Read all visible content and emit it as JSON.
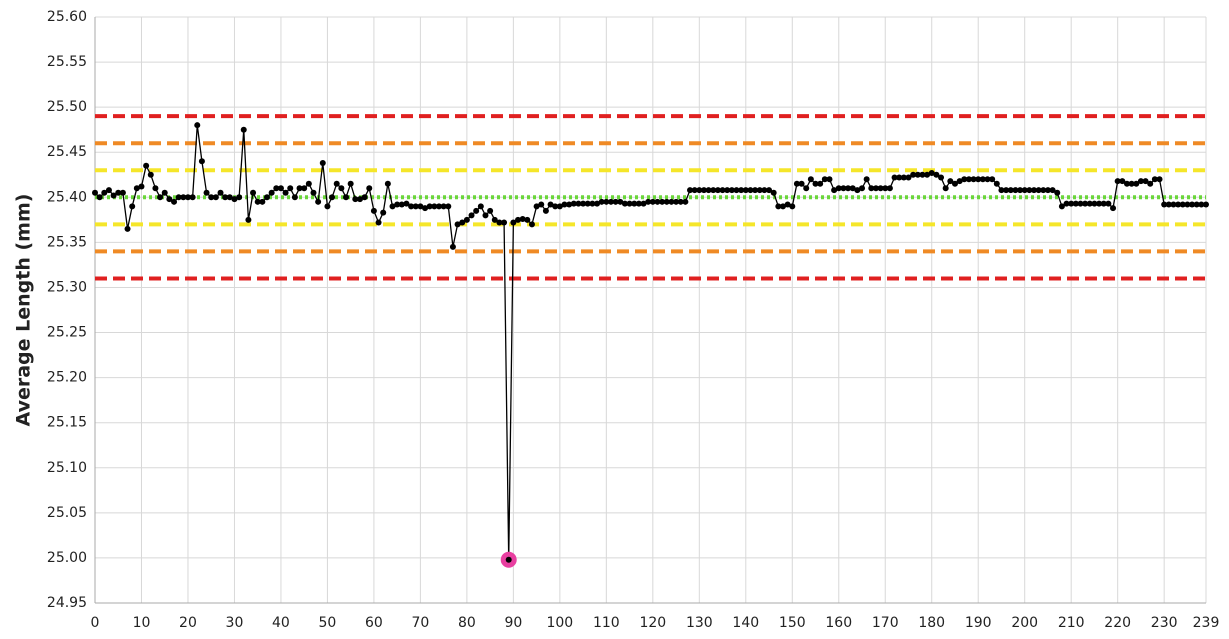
{
  "chart_data": {
    "type": "line",
    "y_label": "Average Length (mm)",
    "x": [
      0,
      1,
      2,
      3,
      4,
      5,
      6,
      7,
      8,
      9,
      10,
      11,
      12,
      13,
      14,
      15,
      16,
      17,
      18,
      19,
      20,
      21,
      22,
      23,
      24,
      25,
      26,
      27,
      28,
      29,
      30,
      31,
      32,
      33,
      34,
      35,
      36,
      37,
      38,
      39,
      40,
      41,
      42,
      43,
      44,
      45,
      46,
      47,
      48,
      49,
      50,
      51,
      52,
      53,
      54,
      55,
      56,
      57,
      58,
      59,
      60,
      61,
      62,
      63,
      64,
      65,
      66,
      67,
      68,
      69,
      70,
      71,
      72,
      73,
      74,
      75,
      76,
      77,
      78,
      79,
      80,
      81,
      82,
      83,
      84,
      85,
      86,
      87,
      88,
      89,
      90,
      91,
      92,
      93,
      94,
      95,
      96,
      97,
      98,
      99,
      100,
      101,
      102,
      103,
      104,
      105,
      106,
      107,
      108,
      109,
      110,
      111,
      112,
      113,
      114,
      115,
      116,
      117,
      118,
      119,
      120,
      121,
      122,
      123,
      124,
      125,
      126,
      127,
      128,
      129,
      130,
      131,
      132,
      133,
      134,
      135,
      136,
      137,
      138,
      139,
      140,
      141,
      142,
      143,
      144,
      145,
      146,
      147,
      148,
      149,
      150,
      151,
      152,
      153,
      154,
      155,
      156,
      157,
      158,
      159,
      160,
      161,
      162,
      163,
      164,
      165,
      166,
      167,
      168,
      169,
      170,
      171,
      172,
      173,
      174,
      175,
      176,
      177,
      178,
      179,
      180,
      181,
      182,
      183,
      184,
      185,
      186,
      187,
      188,
      189,
      190,
      191,
      192,
      193,
      194,
      195,
      196,
      197,
      198,
      199,
      200,
      201,
      202,
      203,
      204,
      205,
      206,
      207,
      208,
      209,
      210,
      211,
      212,
      213,
      214,
      215,
      216,
      217,
      218,
      219,
      220,
      221,
      222,
      223,
      224,
      225,
      226,
      227,
      228,
      229,
      230,
      231,
      232,
      233,
      234,
      235,
      236,
      237,
      238,
      239
    ],
    "values": [
      25.405,
      25.4,
      25.405,
      25.408,
      25.402,
      25.405,
      25.405,
      25.365,
      25.39,
      25.41,
      25.412,
      25.435,
      25.425,
      25.41,
      25.4,
      25.405,
      25.398,
      25.395,
      25.4,
      25.4,
      25.4,
      25.4,
      25.48,
      25.44,
      25.405,
      25.4,
      25.4,
      25.405,
      25.4,
      25.4,
      25.398,
      25.4,
      25.475,
      25.375,
      25.405,
      25.395,
      25.395,
      25.4,
      25.405,
      25.41,
      25.41,
      25.405,
      25.41,
      25.4,
      25.41,
      25.41,
      25.415,
      25.405,
      25.395,
      25.438,
      25.39,
      25.4,
      25.415,
      25.41,
      25.4,
      25.415,
      25.398,
      25.398,
      25.4,
      25.41,
      25.385,
      25.372,
      25.383,
      25.415,
      25.39,
      25.392,
      25.392,
      25.393,
      25.39,
      25.39,
      25.39,
      25.388,
      25.39,
      25.39,
      25.39,
      25.39,
      25.39,
      25.345,
      25.37,
      25.372,
      25.375,
      25.38,
      25.385,
      25.39,
      25.38,
      25.385,
      25.375,
      25.372,
      25.372,
      24.998,
      25.372,
      25.375,
      25.376,
      25.375,
      25.37,
      25.39,
      25.392,
      25.385,
      25.392,
      25.39,
      25.39,
      25.392,
      25.392,
      25.393,
      25.393,
      25.393,
      25.393,
      25.393,
      25.393,
      25.395,
      25.395,
      25.395,
      25.395,
      25.395,
      25.393,
      25.393,
      25.393,
      25.393,
      25.393,
      25.395,
      25.395,
      25.395,
      25.395,
      25.395,
      25.395,
      25.395,
      25.395,
      25.395,
      25.408,
      25.408,
      25.408,
      25.408,
      25.408,
      25.408,
      25.408,
      25.408,
      25.408,
      25.408,
      25.408,
      25.408,
      25.408,
      25.408,
      25.408,
      25.408,
      25.408,
      25.408,
      25.405,
      25.39,
      25.39,
      25.392,
      25.39,
      25.415,
      25.415,
      25.41,
      25.42,
      25.415,
      25.415,
      25.42,
      25.42,
      25.408,
      25.41,
      25.41,
      25.41,
      25.41,
      25.408,
      25.41,
      25.42,
      25.41,
      25.41,
      25.41,
      25.41,
      25.41,
      25.422,
      25.422,
      25.422,
      25.422,
      25.425,
      25.425,
      25.425,
      25.425,
      25.427,
      25.425,
      25.422,
      25.41,
      25.418,
      25.415,
      25.418,
      25.42,
      25.42,
      25.42,
      25.42,
      25.42,
      25.42,
      25.42,
      25.415,
      25.408,
      25.408,
      25.408,
      25.408,
      25.408,
      25.408,
      25.408,
      25.408,
      25.408,
      25.408,
      25.408,
      25.408,
      25.405,
      25.39,
      25.393,
      25.393,
      25.393,
      25.393,
      25.393,
      25.393,
      25.393,
      25.393,
      25.393,
      25.393,
      25.388,
      25.418,
      25.418,
      25.415,
      25.415,
      25.415,
      25.418,
      25.418,
      25.415,
      25.42,
      25.42,
      25.392,
      25.392,
      25.392,
      25.392,
      25.392,
      25.392,
      25.392,
      25.392,
      25.392,
      25.392
    ],
    "color": "#000000",
    "highlight_index": 89,
    "highlight_color": "#e83fa0",
    "reference_lines": [
      {
        "value": 25.49,
        "color": "#e02020",
        "style": "dashed"
      },
      {
        "value": 25.46,
        "color": "#ef8a25",
        "style": "dashed"
      },
      {
        "value": 25.43,
        "color": "#f5e62a",
        "style": "dashed"
      },
      {
        "value": 25.4,
        "color": "#6ad63a",
        "style": "dotted"
      },
      {
        "value": 25.37,
        "color": "#f5e62a",
        "style": "dashed"
      },
      {
        "value": 25.34,
        "color": "#ef8a25",
        "style": "dashed"
      },
      {
        "value": 25.31,
        "color": "#e02020",
        "style": "dashed"
      }
    ],
    "xlim": [
      0,
      239
    ],
    "xticks": [
      0,
      10,
      20,
      30,
      40,
      50,
      60,
      70,
      80,
      90,
      100,
      110,
      120,
      130,
      140,
      150,
      160,
      170,
      180,
      190,
      200,
      210,
      220,
      230,
      239
    ],
    "ylim": [
      24.95,
      25.6
    ],
    "yticks": [
      24.95,
      {
        "value": 25.0,
        "label": "25.00"
      },
      25.05,
      {
        "value": 25.1,
        "label": "25.10"
      },
      25.15,
      {
        "value": 25.2,
        "label": "25.20"
      },
      25.25,
      {
        "value": 25.3,
        "label": "25.30"
      },
      25.35,
      {
        "value": 25.4,
        "label": "25.40"
      },
      25.45,
      {
        "value": 25.5,
        "label": "25.50"
      },
      25.55,
      {
        "value": 25.6,
        "label": "25.60"
      }
    ],
    "grid": true
  }
}
